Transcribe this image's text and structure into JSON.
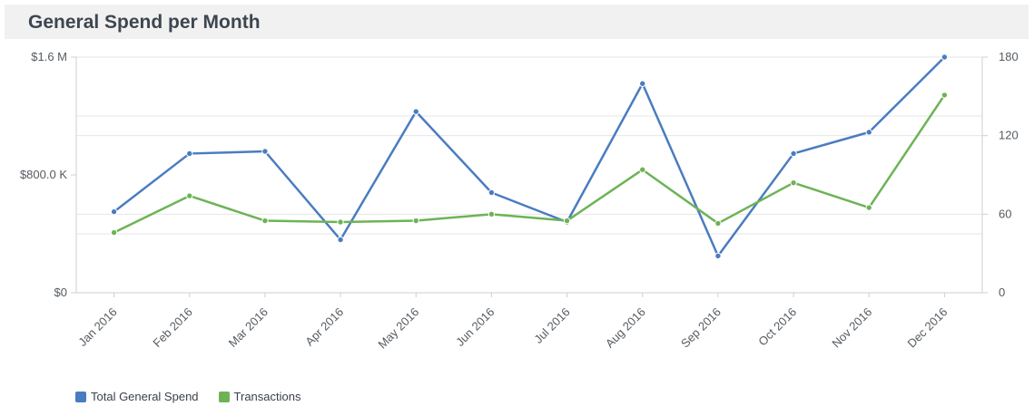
{
  "header": {
    "title": "General Spend per Month"
  },
  "colors": {
    "spend": "#4a7cc0",
    "transactions": "#6db356",
    "grid": "#e6e6e6",
    "axis": "#cfcfcf"
  },
  "chart_data": {
    "type": "line",
    "title": "General Spend per Month",
    "categories": [
      "Jan 2016",
      "Feb 2016",
      "Mar 2016",
      "Apr 2016",
      "May 2016",
      "Jun 2016",
      "Jul 2016",
      "Aug 2016",
      "Sep 2016",
      "Oct 2016",
      "Nov 2016",
      "Dec 2016"
    ],
    "y_left": {
      "ylim": [
        0,
        1600000
      ],
      "ticks": [
        0,
        800000,
        1600000
      ],
      "tick_labels": [
        "$0",
        "$800.0 K",
        "$1.6 M"
      ]
    },
    "y_right": {
      "ylim": [
        0,
        180
      ],
      "ticks": [
        0,
        60,
        120,
        180
      ],
      "tick_labels": [
        "0",
        "60",
        "120",
        "180"
      ]
    },
    "grid": true,
    "legend_position": "bottom-left",
    "series": [
      {
        "name": "Total General Spend",
        "axis": "left",
        "color": "#4a7cc0",
        "values": [
          550000,
          945000,
          960000,
          360000,
          1230000,
          680000,
          480000,
          1420000,
          250000,
          945000,
          1090000,
          1600000
        ]
      },
      {
        "name": "Transactions",
        "axis": "right",
        "color": "#6db356",
        "values": [
          46,
          74,
          55,
          54,
          55,
          60,
          55,
          94,
          53,
          84,
          65,
          151
        ]
      }
    ]
  }
}
